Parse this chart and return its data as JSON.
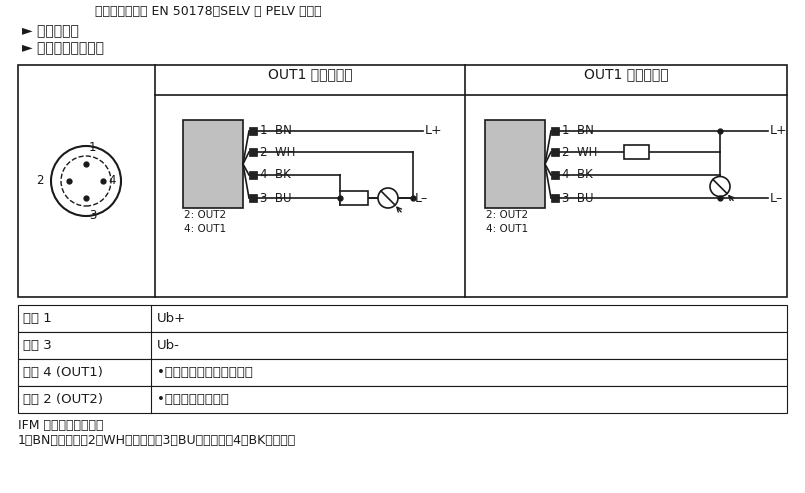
{
  "bg": "#ffffff",
  "fg": "#1a1a1a",
  "gray": "#c0c0c0",
  "top_line": "电源电压遵符合 EN 50178、SELV 和 PELV 标准。",
  "bullet1": "► 切断电源。",
  "bullet2": "► 按下图连接设备：",
  "hdr_left": "OUT1 正极性输出",
  "hdr_right": "OUT1 负极性输出",
  "table": [
    [
      "插脚 1",
      "Ub+"
    ],
    [
      "插脚 3",
      "Ub-"
    ],
    [
      "插脚 4 (OUT1)",
      "•二进制开关输出压力监控"
    ],
    [
      "插脚 2 (OUT2)",
      "•系统压力的模拟量"
    ]
  ],
  "footer1": "IFM 插座的芯线颜色：",
  "footer2": "1＝BN（棕色），2＝WH（白色），3＝BU（蓝色），4＝BK（黑色）"
}
